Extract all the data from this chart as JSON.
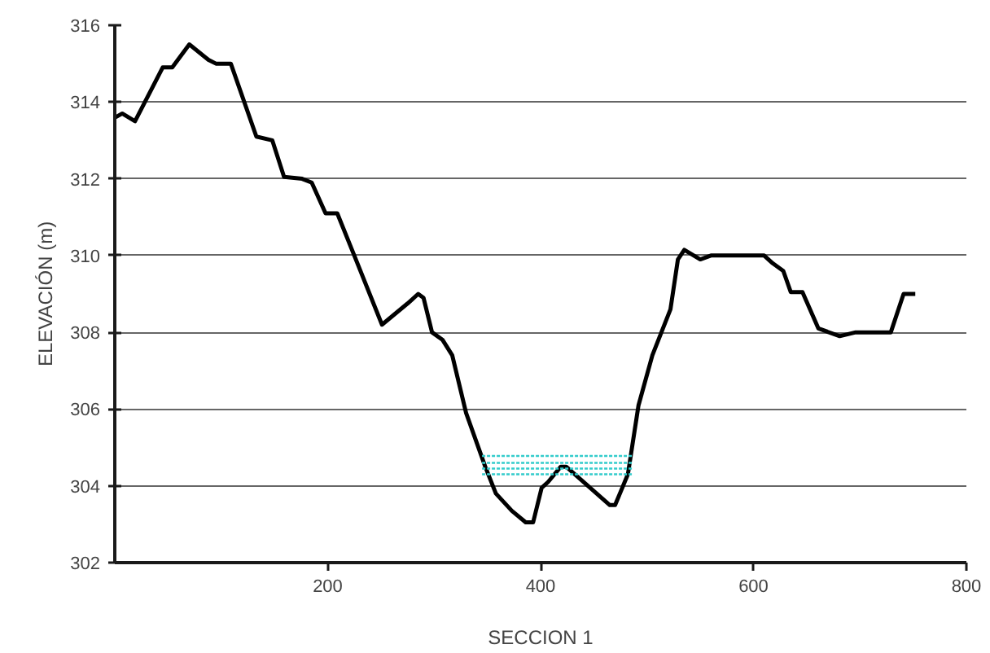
{
  "chart_data": {
    "type": "line",
    "xlabel": "SECCION 1",
    "ylabel": "ELEVACIÓN (m)",
    "xlim": [
      0,
      800
    ],
    "xticks": [
      200,
      400,
      600,
      800
    ],
    "ylim": [
      302,
      316
    ],
    "yticks": [
      302,
      304,
      306,
      308,
      310,
      312,
      314,
      316
    ],
    "grid": "y",
    "series": [
      {
        "color": "#000000",
        "line_style": "solid",
        "x": [
          0.5,
          7,
          19,
          45,
          54,
          70,
          88,
          95,
          109,
          133,
          148,
          159,
          176,
          185,
          198,
          209,
          225,
          251,
          275,
          285,
          290,
          298,
          308,
          317,
          330,
          348,
          358,
          373,
          386,
          393,
          401,
          407,
          419,
          424,
          465,
          470,
          482,
          492,
          505,
          522,
          529,
          535,
          550,
          560,
          610,
          618,
          628,
          635,
          646,
          661,
          681,
          696,
          729,
          741,
          752
        ],
        "values": [
          313.6,
          313.7,
          313.5,
          314.9,
          314.9,
          315.5,
          315.1,
          315.0,
          315.0,
          313.1,
          313.0,
          312.05,
          312.0,
          311.9,
          311.1,
          311.1,
          310.0,
          308.2,
          308.75,
          309.0,
          308.9,
          308.0,
          307.8,
          307.4,
          305.9,
          304.5,
          303.8,
          303.35,
          303.05,
          303.05,
          303.95,
          304.1,
          304.5,
          304.5,
          303.5,
          303.5,
          304.3,
          306.1,
          307.4,
          308.6,
          309.9,
          310.15,
          309.9,
          310.0,
          310.0,
          309.8,
          309.6,
          309.05,
          309.05,
          308.1,
          307.9,
          308.0,
          308.0,
          309.0,
          309.0
        ]
      },
      {
        "color": "#33cccc",
        "line_style": "dotted",
        "x": [
          345,
          486
        ],
        "values": [
          304.78,
          304.78
        ]
      },
      {
        "color": "#33cccc",
        "line_style": "dotted",
        "x": [
          345,
          486
        ],
        "values": [
          304.6,
          304.6
        ]
      },
      {
        "color": "#33cccc",
        "line_style": "dotted",
        "x": [
          345,
          486
        ],
        "values": [
          304.45,
          304.45
        ]
      },
      {
        "color": "#33cccc",
        "line_style": "dotted",
        "x": [
          345,
          486
        ],
        "values": [
          304.3,
          304.3
        ]
      }
    ]
  }
}
